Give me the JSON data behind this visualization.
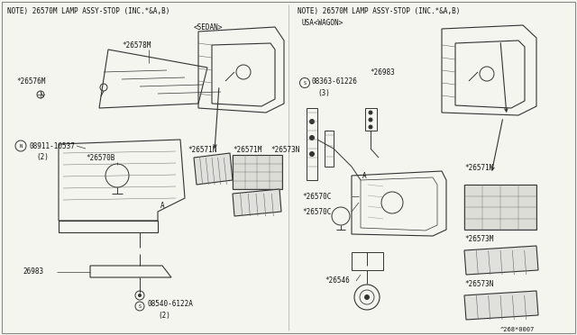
{
  "bg_color": "#f5f5f0",
  "line_color": "#333333",
  "text_color": "#111111",
  "fig_width": 6.4,
  "fig_height": 3.72,
  "dpi": 100,
  "note_left": "NOTE) 26570M LAMP ASSY-STOP (INC.*&A,B)",
  "note_right": "NOTE) 26570M LAMP ASSY-STOP (INC.*&A,B)",
  "label_sedan": "<SEDAN>",
  "label_wagon": "USA<WAGON>",
  "bottom_ref": "^268*0007"
}
